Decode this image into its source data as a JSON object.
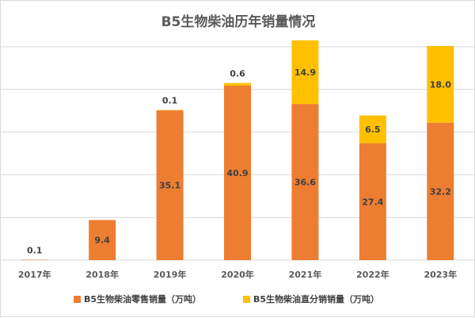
{
  "chart_data": {
    "type": "bar",
    "stacked": true,
    "title": "B5生物柴油历年销量情况",
    "categories": [
      "2017年",
      "2018年",
      "2019年",
      "2020年",
      "2021年",
      "2022年",
      "2023年"
    ],
    "series": [
      {
        "name": "B5生物柴油零售销量（万吨）",
        "color": "#ED7D31",
        "values": [
          0.1,
          9.4,
          35.1,
          40.9,
          36.6,
          27.4,
          32.2
        ]
      },
      {
        "name": "B5生物柴油直分销销量（万吨）",
        "color": "#FFC000",
        "values": [
          null,
          null,
          0.1,
          0.6,
          14.9,
          6.5,
          18.0
        ]
      }
    ],
    "labels": {
      "retail": [
        "0.1",
        "9.4",
        "35.1",
        "40.9",
        "36.6",
        "27.4",
        "32.2"
      ],
      "wholesale": [
        "",
        "",
        "0.1",
        "0.6",
        "14.9",
        "6.5",
        "18.0"
      ]
    },
    "ylim": [
      0,
      50
    ],
    "gridlines": true,
    "legend": "bottom",
    "xlabel": "",
    "ylabel": ""
  }
}
